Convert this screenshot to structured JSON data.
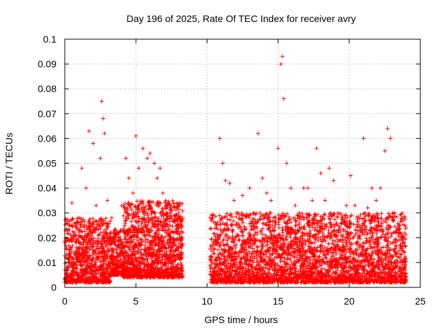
{
  "chart_data": {
    "type": "scatter",
    "title": "Day 196 of 2025, Rate Of TEC Index for receiver avry",
    "xlabel": "GPS time / hours",
    "ylabel": "ROTI / TECUs",
    "xlim": [
      0,
      25
    ],
    "ylim": [
      0,
      0.1
    ],
    "x_ticks": [
      "0",
      "5",
      "10",
      "15",
      "20",
      "25"
    ],
    "y_ticks": [
      "0",
      "0.01",
      "0.02",
      "0.03",
      "0.04",
      "0.05",
      "0.06",
      "0.07",
      "0.08",
      "0.09",
      "0.1"
    ],
    "grid": true,
    "marker": "+",
    "color": "#ff0000",
    "series": [
      {
        "x": [
          0.1,
          0.3,
          0.5,
          0.8,
          1.0,
          1.2,
          1.5,
          1.7,
          2.0,
          2.2,
          2.5,
          2.6,
          2.7,
          2.8,
          3.0,
          3.3,
          3.6,
          4.0,
          4.3,
          4.5,
          4.8,
          5.0,
          5.2,
          5.5,
          5.8,
          6.0,
          6.3,
          6.5,
          6.7,
          6.9,
          7.1,
          7.4,
          7.7,
          8.0,
          10.4,
          10.6,
          10.9,
          11.1,
          11.3,
          11.6,
          11.9,
          12.2,
          12.5,
          12.8,
          13.0,
          13.3,
          13.6,
          13.9,
          14.2,
          14.5,
          14.8,
          15.0,
          15.2,
          15.3,
          15.4,
          15.6,
          15.9,
          16.2,
          16.5,
          16.8,
          17.1,
          17.4,
          17.7,
          18.0,
          18.3,
          18.6,
          18.9,
          19.2,
          19.5,
          19.8,
          20.1,
          20.4,
          20.7,
          21.0,
          21.3,
          21.6,
          21.9,
          22.2,
          22.5,
          22.7,
          22.9,
          23.2,
          23.5,
          23.8
        ],
        "y": [
          0.012,
          0.025,
          0.034,
          0.018,
          0.028,
          0.048,
          0.04,
          0.063,
          0.058,
          0.033,
          0.052,
          0.075,
          0.068,
          0.062,
          0.035,
          0.028,
          0.022,
          0.033,
          0.052,
          0.044,
          0.038,
          0.061,
          0.048,
          0.056,
          0.052,
          0.054,
          0.05,
          0.044,
          0.048,
          0.038,
          0.035,
          0.03,
          0.032,
          0.03,
          0.028,
          0.026,
          0.06,
          0.05,
          0.043,
          0.042,
          0.035,
          0.03,
          0.037,
          0.029,
          0.04,
          0.03,
          0.062,
          0.044,
          0.038,
          0.035,
          0.028,
          0.056,
          0.09,
          0.093,
          0.076,
          0.05,
          0.04,
          0.033,
          0.03,
          0.04,
          0.04,
          0.035,
          0.056,
          0.046,
          0.035,
          0.048,
          0.043,
          0.03,
          0.028,
          0.033,
          0.045,
          0.033,
          0.025,
          0.06,
          0.032,
          0.04,
          0.035,
          0.04,
          0.055,
          0.064,
          0.06,
          0.03,
          0.025,
          0.018
        ]
      }
    ]
  }
}
